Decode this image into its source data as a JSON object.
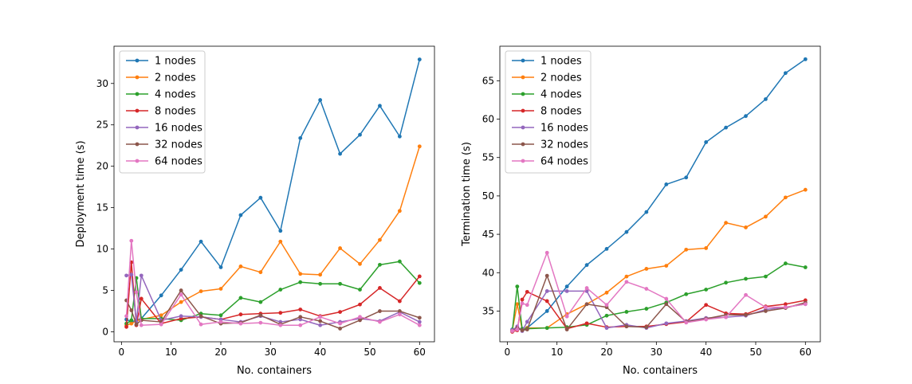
{
  "chart_data": [
    {
      "type": "line",
      "title": "",
      "xlabel": "No. containers",
      "ylabel": "Deployment time (s)",
      "xlim": [
        -1.5,
        63
      ],
      "ylim": [
        -1.2,
        34.5
      ],
      "xticks": [
        0,
        10,
        20,
        30,
        40,
        50,
        60
      ],
      "yticks": [
        0,
        5,
        10,
        15,
        20,
        25,
        30
      ],
      "grid": false,
      "legend": "top-left",
      "series": [
        {
          "name": "1 nodes",
          "color": "#1f77b4",
          "x": [
            1,
            2,
            3,
            4,
            8,
            12,
            16,
            20,
            24,
            28,
            32,
            36,
            40,
            44,
            48,
            52,
            56,
            60
          ],
          "y": [
            1.5,
            1.2,
            1.4,
            1.6,
            4.4,
            7.5,
            10.9,
            7.8,
            14.1,
            16.2,
            12.2,
            23.4,
            28.0,
            21.5,
            23.8,
            27.3,
            23.6,
            32.9
          ]
        },
        {
          "name": "2 nodes",
          "color": "#ff7f0e",
          "x": [
            1,
            2,
            3,
            4,
            8,
            12,
            16,
            20,
            24,
            28,
            32,
            36,
            40,
            44,
            48,
            52,
            56,
            60
          ],
          "y": [
            0.8,
            1.0,
            1.3,
            1.5,
            2.0,
            3.6,
            4.9,
            5.2,
            7.9,
            7.2,
            10.9,
            7.0,
            6.9,
            10.1,
            8.2,
            11.1,
            14.6,
            22.4
          ]
        },
        {
          "name": "4 nodes",
          "color": "#2ca02c",
          "x": [
            1,
            2,
            3,
            4,
            8,
            12,
            16,
            20,
            24,
            28,
            32,
            36,
            40,
            44,
            48,
            52,
            56,
            60
          ],
          "y": [
            1.0,
            1.4,
            6.5,
            1.6,
            1.6,
            1.4,
            2.2,
            2.0,
            4.1,
            3.6,
            5.1,
            6.0,
            5.8,
            5.8,
            5.1,
            8.1,
            8.5,
            5.9
          ]
        },
        {
          "name": "8 nodes",
          "color": "#d62728",
          "x": [
            1,
            2,
            3,
            4,
            8,
            12,
            16,
            20,
            24,
            28,
            32,
            36,
            40,
            44,
            48,
            52,
            56,
            60
          ],
          "y": [
            0.6,
            8.4,
            0.8,
            4.0,
            1.0,
            1.6,
            1.8,
            1.5,
            2.1,
            2.2,
            2.3,
            2.7,
            1.9,
            2.4,
            3.3,
            5.3,
            3.7,
            6.7
          ]
        },
        {
          "name": "16 nodes",
          "color": "#9467bd",
          "x": [
            1,
            2,
            3,
            4,
            8,
            12,
            16,
            20,
            24,
            28,
            32,
            36,
            40,
            44,
            48,
            52,
            56,
            60
          ],
          "y": [
            6.8,
            6.9,
            1.2,
            6.8,
            1.4,
            1.9,
            1.8,
            1.5,
            1.2,
            1.9,
            1.2,
            1.5,
            0.8,
            1.2,
            1.6,
            1.3,
            2.4,
            1.2
          ]
        },
        {
          "name": "32 nodes",
          "color": "#8c564b",
          "x": [
            1,
            2,
            3,
            4,
            8,
            12,
            16,
            20,
            24,
            28,
            32,
            36,
            40,
            44,
            48,
            52,
            56,
            60
          ],
          "y": [
            3.8,
            2.6,
            0.9,
            1.4,
            1.2,
            5.0,
            1.9,
            1.0,
            1.1,
            2.0,
            0.9,
            1.8,
            1.3,
            0.4,
            1.4,
            2.5,
            2.5,
            1.7
          ]
        },
        {
          "name": "64 nodes",
          "color": "#e377c2",
          "x": [
            1,
            2,
            3,
            4,
            8,
            12,
            16,
            20,
            24,
            28,
            32,
            36,
            40,
            44,
            48,
            52,
            56,
            60
          ],
          "y": [
            1.9,
            11.0,
            4.8,
            0.8,
            0.9,
            4.5,
            0.9,
            1.2,
            1.0,
            1.1,
            0.8,
            0.8,
            1.8,
            1.0,
            1.8,
            1.2,
            2.1,
            0.8
          ]
        }
      ]
    },
    {
      "type": "line",
      "title": "",
      "xlabel": "No. containers",
      "ylabel": "Termination time (s)",
      "xlim": [
        -1.5,
        63
      ],
      "ylim": [
        31.0,
        69.5
      ],
      "xticks": [
        0,
        10,
        20,
        30,
        40,
        50,
        60
      ],
      "yticks": [
        35,
        40,
        45,
        50,
        55,
        60,
        65
      ],
      "grid": false,
      "legend": "top-left",
      "series": [
        {
          "name": "1 nodes",
          "color": "#1f77b4",
          "x": [
            1,
            2,
            3,
            4,
            8,
            12,
            16,
            20,
            24,
            28,
            32,
            36,
            40,
            44,
            48,
            52,
            56,
            60
          ],
          "y": [
            32.6,
            32.6,
            32.7,
            32.8,
            35.0,
            38.2,
            41.0,
            43.1,
            45.3,
            47.9,
            51.5,
            52.4,
            57.0,
            58.9,
            60.4,
            62.6,
            66.0,
            67.8
          ]
        },
        {
          "name": "2 nodes",
          "color": "#ff7f0e",
          "x": [
            1,
            2,
            3,
            4,
            8,
            12,
            16,
            20,
            24,
            28,
            32,
            36,
            40,
            44,
            48,
            52,
            56,
            60
          ],
          "y": [
            32.5,
            35.9,
            32.6,
            32.8,
            32.8,
            34.6,
            35.9,
            37.4,
            39.5,
            40.5,
            40.9,
            43.0,
            43.2,
            46.5,
            45.9,
            47.3,
            49.8,
            50.8
          ]
        },
        {
          "name": "4 nodes",
          "color": "#2ca02c",
          "x": [
            1,
            2,
            3,
            4,
            8,
            12,
            16,
            20,
            24,
            28,
            32,
            36,
            40,
            44,
            48,
            52,
            56,
            60
          ],
          "y": [
            32.4,
            38.2,
            32.6,
            32.7,
            32.8,
            32.9,
            33.2,
            34.4,
            34.9,
            35.3,
            36.1,
            37.2,
            37.8,
            38.7,
            39.2,
            39.5,
            41.2,
            40.7
          ]
        },
        {
          "name": "8 nodes",
          "color": "#d62728",
          "x": [
            1,
            2,
            3,
            4,
            8,
            12,
            16,
            20,
            24,
            28,
            32,
            36,
            40,
            44,
            48,
            52,
            56,
            60
          ],
          "y": [
            32.3,
            32.5,
            36.5,
            37.5,
            36.3,
            32.7,
            33.4,
            32.9,
            33.0,
            33.0,
            33.3,
            33.6,
            35.8,
            34.7,
            34.6,
            35.6,
            35.9,
            36.4
          ]
        },
        {
          "name": "16 nodes",
          "color": "#9467bd",
          "x": [
            1,
            2,
            3,
            4,
            8,
            12,
            16,
            20,
            24,
            28,
            32,
            36,
            40,
            44,
            48,
            52,
            56,
            60
          ],
          "y": [
            32.5,
            33.0,
            32.4,
            33.6,
            37.6,
            37.6,
            37.6,
            32.8,
            33.2,
            32.8,
            33.4,
            33.7,
            34.1,
            34.2,
            34.4,
            35.2,
            35.5,
            35.9
          ]
        },
        {
          "name": "32 nodes",
          "color": "#8c564b",
          "x": [
            1,
            2,
            3,
            4,
            8,
            12,
            16,
            20,
            24,
            28,
            32,
            36,
            40,
            44,
            48,
            52,
            56,
            60
          ],
          "y": [
            32.4,
            32.8,
            32.5,
            32.6,
            39.6,
            32.6,
            35.9,
            35.5,
            33.0,
            32.9,
            35.9,
            33.6,
            34.0,
            34.5,
            34.5,
            35.0,
            35.4,
            36.1
          ]
        },
        {
          "name": "64 nodes",
          "color": "#e377c2",
          "x": [
            1,
            2,
            3,
            4,
            8,
            12,
            16,
            20,
            24,
            28,
            32,
            36,
            40,
            44,
            48,
            52,
            56,
            60
          ],
          "y": [
            32.4,
            32.6,
            36.0,
            35.8,
            42.6,
            34.3,
            38.0,
            35.8,
            38.8,
            37.9,
            36.6,
            33.5,
            33.9,
            34.2,
            37.1,
            35.5,
            35.5,
            35.9
          ]
        }
      ]
    }
  ]
}
